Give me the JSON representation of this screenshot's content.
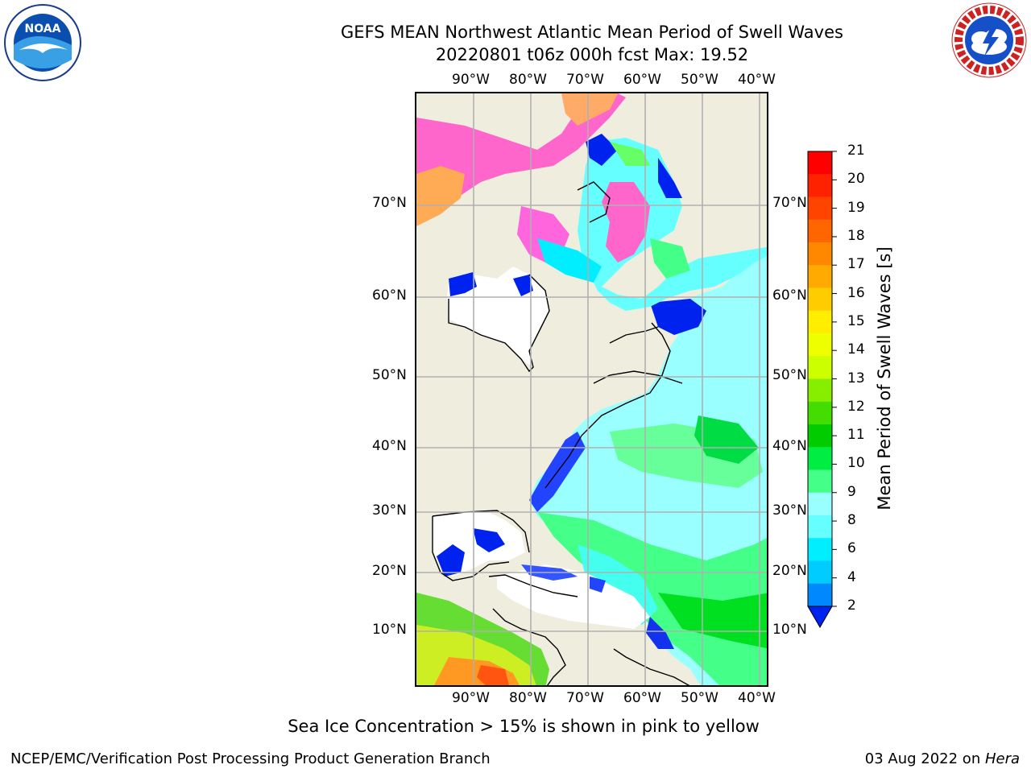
{
  "header": {
    "title": "GEFS MEAN Northwest Atlantic Mean Period of Swell Waves",
    "subtitle": "20220801 t06z 000h fcst   Max: 19.52"
  },
  "logos": {
    "left_text": "NOAA",
    "left_ring_text": "NATIONAL OCEANIC AND ATMOSPHERIC ADMINISTRATION  U.S. DEPARTMENT OF COMMERCE",
    "right_ring_text": "NATIONAL WEATHER SERVICE"
  },
  "map": {
    "lon_labels": [
      "90°W",
      "80°W",
      "70°W",
      "60°W",
      "50°W",
      "40°W"
    ],
    "lat_labels": [
      "70°N",
      "60°N",
      "50°N",
      "40°N",
      "30°N",
      "20°N",
      "10°N"
    ],
    "colors": {
      "land": "#efedde",
      "grid": "#b0b0b0",
      "ice_pink": "#ff66cc",
      "ice_orange": "#ffaa55",
      "swell_blue": "#0022ee",
      "swell_cyan": "#00eeff",
      "swell_lightcyan": "#99ffff",
      "swell_green": "#44ff88",
      "swell_brightgreen": "#00dd00"
    }
  },
  "colorbar": {
    "title": "Mean Period of Swell Waves [s]",
    "ticks": [
      "21",
      "20",
      "19",
      "18",
      "17",
      "16",
      "15",
      "14",
      "13",
      "12",
      "11",
      "10",
      "9",
      "8",
      "6",
      "4",
      "2"
    ],
    "bands_top_to_bottom": [
      "#ff0000",
      "#ff2200",
      "#ff4400",
      "#ff6600",
      "#ff8800",
      "#ffaa00",
      "#ffcc00",
      "#ffee00",
      "#eeff00",
      "#ccff00",
      "#88ee00",
      "#44dd00",
      "#00cc00",
      "#00ee44",
      "#44ff88",
      "#99ffff",
      "#66ffff",
      "#00eeff",
      "#00ccff",
      "#0088ff"
    ],
    "extend_color": "#0022ee"
  },
  "footer": {
    "note": "Sea Ice Concentration > 15% is shown in pink to yellow",
    "credit": "NCEP/EMC/Verification Post Processing Product Generation Branch",
    "date": "03 Aug 2022 on ",
    "host": "Hera"
  }
}
